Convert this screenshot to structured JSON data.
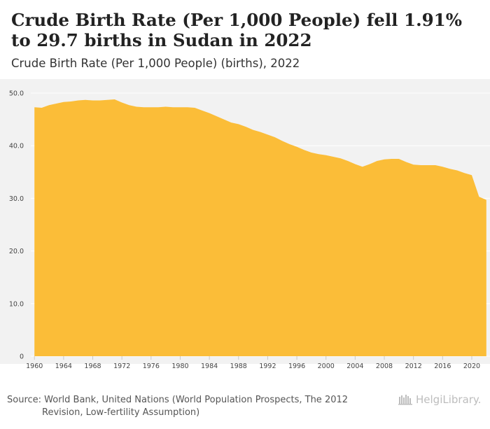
{
  "header": {
    "title": "Crude Birth Rate (Per 1,000 People) fell 1.91% to 29.7 births in Sudan in 2022",
    "subtitle": "Crude Birth Rate (Per 1,000 People) (births), 2022"
  },
  "footer": {
    "source_line1": "Source: World Bank, United Nations (World Population Prospects, The 2012",
    "source_line2": "Revision, Low-fertility Assumption)",
    "logo_text": "HelgiLibrary."
  },
  "colors": {
    "area_fill": "#fbbd38",
    "plot_background": "#f2f2f2",
    "grid": "#ffffff"
  },
  "chart_data": {
    "type": "area",
    "title": "Crude Birth Rate (Per 1,000 People) fell 1.91% to 29.7 births in Sudan in 2022",
    "subtitle": "Crude Birth Rate (Per 1,000 People) (births), 2022",
    "xlabel": "",
    "ylabel": "",
    "xlim": [
      1959.5,
      2022.5
    ],
    "ylim": [
      0,
      50
    ],
    "grid": true,
    "legend": "none",
    "x_ticks": [
      1960,
      1964,
      1968,
      1972,
      1976,
      1980,
      1984,
      1988,
      1992,
      1996,
      2000,
      2004,
      2008,
      2012,
      2016,
      2020
    ],
    "y_ticks": [
      0,
      10,
      20,
      30,
      40,
      50
    ],
    "y_tick_labels": [
      "0",
      "10.0",
      "20.0",
      "30.0",
      "40.0",
      "50.0"
    ],
    "series": [
      {
        "name": "Crude Birth Rate (Per 1,000 People)",
        "x": [
          1960,
          1961,
          1962,
          1963,
          1964,
          1965,
          1966,
          1967,
          1968,
          1969,
          1970,
          1971,
          1972,
          1973,
          1974,
          1975,
          1976,
          1977,
          1978,
          1979,
          1980,
          1981,
          1982,
          1983,
          1984,
          1985,
          1986,
          1987,
          1988,
          1989,
          1990,
          1991,
          1992,
          1993,
          1994,
          1995,
          1996,
          1997,
          1998,
          1999,
          2000,
          2001,
          2002,
          2003,
          2004,
          2005,
          2006,
          2007,
          2008,
          2009,
          2010,
          2011,
          2012,
          2013,
          2014,
          2015,
          2016,
          2017,
          2018,
          2019,
          2020,
          2021,
          2022
        ],
        "values": [
          47.3,
          47.2,
          47.7,
          48.0,
          48.3,
          48.4,
          48.6,
          48.7,
          48.6,
          48.6,
          48.7,
          48.8,
          48.2,
          47.7,
          47.4,
          47.3,
          47.3,
          47.3,
          47.4,
          47.3,
          47.3,
          47.3,
          47.2,
          46.7,
          46.2,
          45.6,
          45.0,
          44.4,
          44.1,
          43.6,
          43.0,
          42.6,
          42.1,
          41.6,
          40.9,
          40.3,
          39.8,
          39.2,
          38.7,
          38.4,
          38.2,
          37.9,
          37.6,
          37.1,
          36.5,
          36.0,
          36.5,
          37.1,
          37.4,
          37.5,
          37.5,
          36.9,
          36.4,
          36.3,
          36.3,
          36.3,
          36.0,
          35.6,
          35.3,
          34.8,
          34.4,
          30.3,
          29.7
        ]
      }
    ]
  }
}
